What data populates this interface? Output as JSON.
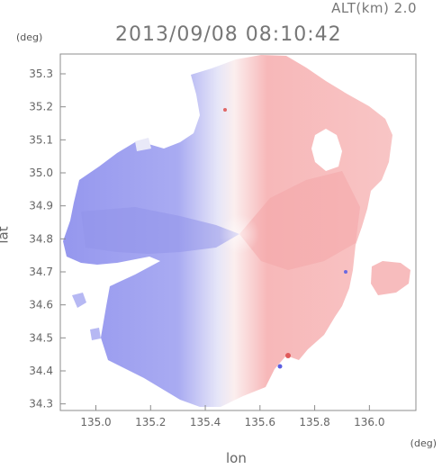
{
  "header": {
    "alt_label": "ALT(km)  2.0",
    "timestamp": "2013/09/08 08:10:42"
  },
  "axes": {
    "y_unit": "(deg)",
    "x_unit": "(deg)",
    "x_label": "lon",
    "y_label": "lat"
  },
  "chart_data": {
    "type": "heatmap",
    "x_ticks": [
      "135.0",
      "135.2",
      "135.4",
      "135.6",
      "135.8",
      "136.0"
    ],
    "x_tick_values": [
      135.0,
      135.2,
      135.4,
      135.6,
      135.8,
      136.0
    ],
    "y_ticks": [
      "35.3",
      "35.2",
      "35.1",
      "35.0",
      "34.9",
      "34.8",
      "34.7",
      "34.6",
      "34.5",
      "34.4",
      "34.3"
    ],
    "y_tick_values": [
      35.3,
      35.2,
      35.1,
      35.0,
      34.9,
      34.8,
      34.7,
      34.6,
      34.5,
      34.4,
      34.3
    ],
    "xlim": [
      134.87,
      136.17
    ],
    "ylim": [
      34.28,
      35.36
    ],
    "radar_center": [
      135.53,
      34.82
    ],
    "colors": {
      "toward": "#9a9cf0",
      "away": "#f6a9aa",
      "neutral": "#f2f2fa"
    }
  }
}
